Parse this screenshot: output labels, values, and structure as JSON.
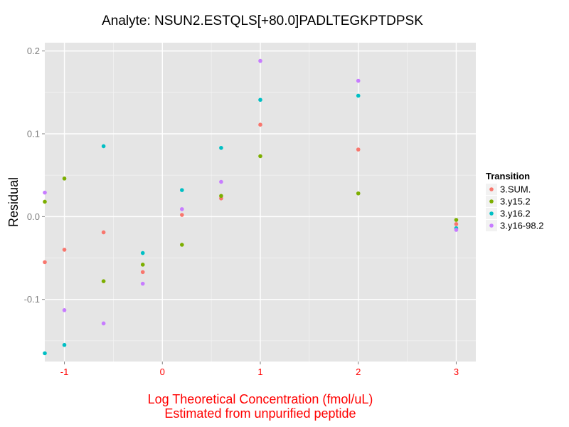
{
  "chart_data": {
    "type": "scatter",
    "title": "Analyte: NSUN2.ESTQLS[+80.0]PADLTEGKPTDPSK",
    "xlabel": [
      "Log Theoretical Concentration (fmol/uL)",
      "Estimated from unpurified peptide"
    ],
    "ylabel": "Residual",
    "xlim": [
      -1.2,
      3.2
    ],
    "ylim": [
      -0.175,
      0.21
    ],
    "x_ticks": [
      -1,
      0,
      1,
      2,
      3
    ],
    "x_tick_labels": [
      "-1",
      "0",
      "1",
      "2",
      "3"
    ],
    "y_ticks": [
      -0.1,
      0.0,
      0.1,
      0.2
    ],
    "y_tick_labels": [
      "-0.1",
      "0.0",
      "0.1",
      "0.2"
    ],
    "grid": true,
    "background": "#e5e5e5",
    "legend": {
      "title": "Transition",
      "placement": "right"
    },
    "series": [
      {
        "name": "3.SUM.",
        "color": "#f8766d",
        "points": [
          [
            -1.2,
            -0.055
          ],
          [
            -1.0,
            -0.04
          ],
          [
            -0.6,
            -0.019
          ],
          [
            -0.2,
            -0.067
          ],
          [
            0.2,
            0.002
          ],
          [
            0.6,
            0.022
          ],
          [
            1.0,
            0.111
          ],
          [
            2.0,
            0.081
          ],
          [
            3.0,
            -0.009
          ]
        ]
      },
      {
        "name": "3.y15.2",
        "color": "#7cae00",
        "points": [
          [
            -1.2,
            0.018
          ],
          [
            -1.0,
            0.046
          ],
          [
            -0.6,
            -0.078
          ],
          [
            -0.2,
            -0.058
          ],
          [
            0.2,
            -0.034
          ],
          [
            0.6,
            0.025
          ],
          [
            1.0,
            0.073
          ],
          [
            2.0,
            0.028
          ],
          [
            3.0,
            -0.004
          ]
        ]
      },
      {
        "name": "3.y16.2",
        "color": "#00bfc4",
        "points": [
          [
            -1.2,
            -0.165
          ],
          [
            -1.0,
            -0.155
          ],
          [
            -0.6,
            0.085
          ],
          [
            -0.2,
            -0.044
          ],
          [
            0.2,
            0.032
          ],
          [
            0.6,
            0.083
          ],
          [
            1.0,
            0.141
          ],
          [
            2.0,
            0.146
          ],
          [
            3.0,
            -0.014
          ]
        ]
      },
      {
        "name": "3.y16-98.2",
        "color": "#c77cff",
        "points": [
          [
            -1.2,
            0.029
          ],
          [
            -1.0,
            -0.113
          ],
          [
            -0.6,
            -0.129
          ],
          [
            -0.2,
            -0.081
          ],
          [
            0.2,
            0.009
          ],
          [
            0.6,
            0.042
          ],
          [
            1.0,
            0.188
          ],
          [
            2.0,
            0.164
          ],
          [
            3.0,
            -0.016
          ]
        ]
      }
    ]
  }
}
